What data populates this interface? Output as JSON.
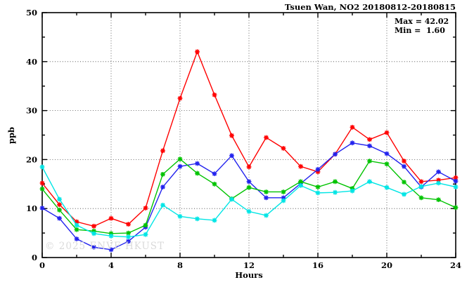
{
  "header": {
    "title": "Tsuen Wan, NO2 20180812-20180815"
  },
  "annotation": {
    "max_label": "Max = 42.02",
    "min_label": "Min =  1.60"
  },
  "watermark": "© 2025 ENVE HKUST",
  "chart_data": {
    "type": "line",
    "title": "Tsuen Wan, NO2 20180812-20180815",
    "xlabel": "Hours",
    "ylabel": "ppb",
    "xlim": [
      0,
      24
    ],
    "ylim": [
      0,
      50
    ],
    "x_major_ticks": [
      0,
      4,
      8,
      12,
      16,
      20,
      24
    ],
    "x_minor_ticks": [
      2,
      6,
      10,
      14,
      18,
      22
    ],
    "y_major_ticks": [
      0,
      10,
      20,
      30,
      40,
      50
    ],
    "y_minor_ticks": [
      5,
      15,
      25,
      35,
      45
    ],
    "grid_x": [
      4,
      8,
      12,
      16,
      20
    ],
    "grid_y": [
      10,
      20,
      30,
      40
    ],
    "grid_style": "dotted",
    "legend": "none",
    "stat_max": 42.02,
    "stat_min": 1.6,
    "x": [
      0,
      1,
      2,
      3,
      4,
      5,
      6,
      7,
      8,
      9,
      10,
      11,
      12,
      13,
      14,
      15,
      16,
      17,
      18,
      19,
      20,
      21,
      22,
      23,
      24
    ],
    "series": [
      {
        "name": "series-red",
        "color": "#ff0000",
        "values": [
          15.2,
          10.8,
          7.3,
          6.4,
          8.0,
          6.8,
          10.1,
          21.8,
          32.5,
          42.02,
          33.2,
          24.9,
          18.5,
          24.5,
          22.3,
          18.6,
          17.5,
          21.1,
          26.6,
          24.1,
          25.5,
          19.7,
          15.5,
          15.8,
          16.3
        ]
      },
      {
        "name": "series-blue",
        "color": "#2222ee",
        "values": [
          10.1,
          8.0,
          3.8,
          2.1,
          1.6,
          3.3,
          6.2,
          14.4,
          18.6,
          19.2,
          17.1,
          20.8,
          15.5,
          12.2,
          12.2,
          15.1,
          18.0,
          21.1,
          23.4,
          22.8,
          21.2,
          18.6,
          14.4,
          17.5,
          15.6
        ]
      },
      {
        "name": "series-green",
        "color": "#00c300",
        "values": [
          14.0,
          9.7,
          5.7,
          5.4,
          4.9,
          5.0,
          6.6,
          17.0,
          20.1,
          17.2,
          15.0,
          12.0,
          14.3,
          13.4,
          13.4,
          15.5,
          14.4,
          15.5,
          14.1,
          19.7,
          19.1,
          15.4,
          12.2,
          11.8,
          10.2
        ]
      },
      {
        "name": "series-cyan",
        "color": "#00e5e5",
        "values": [
          18.5,
          11.9,
          6.6,
          4.9,
          4.4,
          4.2,
          4.7,
          10.7,
          8.4,
          7.9,
          7.6,
          11.9,
          9.4,
          8.6,
          11.6,
          14.7,
          13.2,
          13.3,
          13.6,
          15.5,
          14.3,
          12.9,
          14.5,
          15.2,
          14.4
        ]
      }
    ]
  }
}
